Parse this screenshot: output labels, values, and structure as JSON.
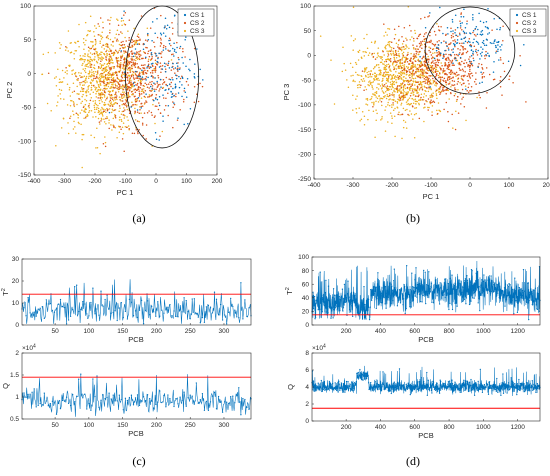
{
  "colors": {
    "cs1": "#0072BD",
    "cs2": "#D95319",
    "cs3": "#EDB120",
    "limit": "#FF0000",
    "trace": "#0072BD",
    "axis": "#262626"
  },
  "panel_labels": [
    "(a)",
    "(b)",
    "(c)",
    "(d)"
  ],
  "chart_data": [
    {
      "type": "scatter",
      "panel": "(a)",
      "xlabel": "PC 1",
      "ylabel": "PC 2",
      "xlim": [
        -400,
        200
      ],
      "ylim": [
        -150,
        100
      ],
      "xticks": [
        -400,
        -300,
        -200,
        -100,
        0,
        100,
        200
      ],
      "yticks": [
        -150,
        -100,
        -50,
        0,
        50,
        100
      ],
      "legend": [
        "CS 1",
        "CS 2",
        "CS 3"
      ],
      "legend_position": "top-right",
      "ellipse": {
        "cx": 20,
        "cy": -5,
        "rx": 120,
        "ry": 105
      },
      "series": [
        {
          "name": "CS 1",
          "cx": 30,
          "cy": 10,
          "sx": 55,
          "sy": 45,
          "n": 170
        },
        {
          "name": "CS 2",
          "cx": -70,
          "cy": -5,
          "sx": 75,
          "sy": 35,
          "n": 650
        },
        {
          "name": "CS 3",
          "cx": -170,
          "cy": -10,
          "sx": 70,
          "sy": 38,
          "n": 900
        }
      ]
    },
    {
      "type": "scatter",
      "panel": "(b)",
      "xlabel": "PC 1",
      "ylabel": "PC 3",
      "xlim": [
        -400,
        200
      ],
      "ylim": [
        -250,
        100
      ],
      "xticks": [
        -400,
        -300,
        -200,
        -100,
        0,
        100,
        200
      ],
      "yticks": [
        -250,
        -200,
        -150,
        -100,
        -50,
        0,
        50,
        100
      ],
      "legend": [
        "CS 1",
        "CS 2",
        "CS 3"
      ],
      "legend_position": "top-right",
      "ellipse": {
        "cx": 0,
        "cy": 10,
        "rx": 115,
        "ry": 88
      },
      "series": [
        {
          "name": "CS 1",
          "cx": 10,
          "cy": 30,
          "sx": 50,
          "sy": 35,
          "n": 170
        },
        {
          "name": "CS 2",
          "cx": -80,
          "cy": -25,
          "sx": 70,
          "sy": 40,
          "n": 650
        },
        {
          "name": "CS 3",
          "cx": -180,
          "cy": -45,
          "sx": 60,
          "sy": 40,
          "n": 900
        }
      ]
    },
    {
      "type": "line",
      "panel": "(c)",
      "subplots": [
        {
          "ylabel": "T²",
          "ylabel_base": "T",
          "ylabel_sup": "2",
          "xlabel": "PCB",
          "xlim": [
            1,
            340
          ],
          "ylim": [
            0,
            30
          ],
          "yticks": [
            0,
            10,
            20,
            30
          ],
          "xticks": [
            50,
            100,
            150,
            200,
            250,
            300
          ],
          "limit": 14,
          "n": 340,
          "mean": 6.5,
          "sd": 3.0,
          "spike_rate": 0.05,
          "spike_min": 11,
          "spike_max": 21,
          "clip": [
            0.5,
            30
          ]
        },
        {
          "ylabel": "Q",
          "xlabel": "PCB",
          "exponent_label": "×10",
          "exponent_sup": "4",
          "xlim": [
            1,
            340
          ],
          "ylim": [
            0.5,
            2.0
          ],
          "yticks": [
            0.5,
            1.0,
            1.5,
            2.0
          ],
          "ytick_labels": [
            "0.5",
            "1",
            "1.5",
            "2"
          ],
          "xticks": [
            50,
            100,
            150,
            200,
            250,
            300
          ],
          "limit": 1.45,
          "n": 340,
          "mean": 0.9,
          "sd": 0.13,
          "spike_rate": 0.05,
          "spike_min": 1.1,
          "spike_max": 1.55,
          "clip": [
            0.55,
            2.0
          ]
        }
      ]
    },
    {
      "type": "line",
      "panel": "(d)",
      "subplots": [
        {
          "ylabel": "T²",
          "ylabel_base": "T",
          "ylabel_sup": "2",
          "xlabel": "PCB",
          "xlim": [
            1,
            1330
          ],
          "ylim": [
            0,
            100
          ],
          "yticks": [
            0,
            20,
            40,
            60,
            80,
            100
          ],
          "xticks": [
            200,
            400,
            600,
            800,
            1000,
            1200
          ],
          "limit": 15,
          "n": 1330,
          "mean": 42,
          "sd": 11,
          "spike_rate": 0.04,
          "spike_min": 60,
          "spike_max": 88,
          "clip": [
            8,
            100
          ],
          "segments": [
            {
              "from": 0,
              "to": 260,
              "mean": 33
            },
            {
              "from": 260,
              "to": 340,
              "mean": 22
            },
            {
              "from": 340,
              "to": 600,
              "mean": 45
            },
            {
              "from": 600,
              "to": 1100,
              "mean": 52
            },
            {
              "from": 1100,
              "to": 1330,
              "mean": 42
            }
          ]
        },
        {
          "ylabel": "Q",
          "xlabel": "PCB",
          "exponent_label": "×10",
          "exponent_sup": "4",
          "xlim": [
            1,
            1330
          ],
          "ylim": [
            0,
            8
          ],
          "yticks": [
            0,
            2,
            4,
            6,
            8
          ],
          "xticks": [
            200,
            400,
            600,
            800,
            1000,
            1200
          ],
          "limit": 1.5,
          "n": 1330,
          "mean": 4.0,
          "sd": 0.35,
          "spike_rate": 0.03,
          "spike_min": 4.6,
          "spike_max": 6.5,
          "clip": [
            2.8,
            8
          ],
          "segments": [
            {
              "from": 0,
              "to": 260,
              "mean": 4.0
            },
            {
              "from": 260,
              "to": 330,
              "mean": 5.3
            },
            {
              "from": 330,
              "to": 1330,
              "mean": 4.0
            }
          ]
        }
      ]
    }
  ]
}
